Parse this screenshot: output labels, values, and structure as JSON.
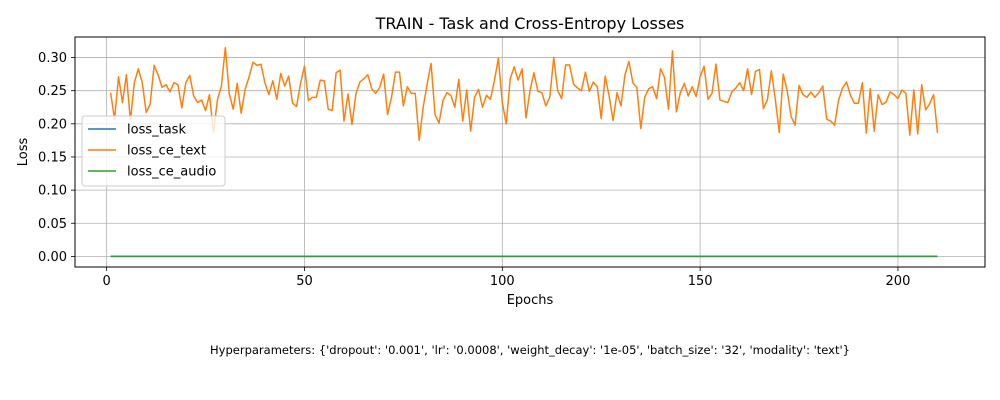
{
  "chart_data": {
    "type": "line",
    "title": "TRAIN - Task and Cross-Entropy Losses",
    "xlabel": "Epochs",
    "ylabel": "Loss",
    "xlim": [
      -8,
      222
    ],
    "ylim": [
      -0.016,
      0.331
    ],
    "xticks": [
      0,
      50,
      100,
      150,
      200
    ],
    "xtick_labels": [
      "0",
      "50",
      "100",
      "150",
      "200"
    ],
    "yticks": [
      0.0,
      0.05,
      0.1,
      0.15,
      0.2,
      0.25,
      0.3
    ],
    "ytick_labels": [
      "0.00",
      "0.05",
      "0.10",
      "0.15",
      "0.20",
      "0.25",
      "0.30"
    ],
    "grid": true,
    "legend_position": "center-left",
    "x": [
      1,
      2,
      3,
      4,
      5,
      6,
      7,
      8,
      9,
      10,
      11,
      12,
      13,
      14,
      15,
      16,
      17,
      18,
      19,
      20,
      21,
      22,
      23,
      24,
      25,
      26,
      27,
      28,
      29,
      30,
      31,
      32,
      33,
      34,
      35,
      36,
      37,
      38,
      39,
      40,
      41,
      42,
      43,
      44,
      45,
      46,
      47,
      48,
      49,
      50,
      51,
      52,
      53,
      54,
      55,
      56,
      57,
      58,
      59,
      60,
      61,
      62,
      63,
      64,
      65,
      66,
      67,
      68,
      69,
      70,
      71,
      72,
      73,
      74,
      75,
      76,
      77,
      78,
      79,
      80,
      81,
      82,
      83,
      84,
      85,
      86,
      87,
      88,
      89,
      90,
      91,
      92,
      93,
      94,
      95,
      96,
      97,
      98,
      99,
      100,
      101,
      102,
      103,
      104,
      105,
      106,
      107,
      108,
      109,
      110,
      111,
      112,
      113,
      114,
      115,
      116,
      117,
      118,
      119,
      120,
      121,
      122,
      123,
      124,
      125,
      126,
      127,
      128,
      129,
      130,
      131,
      132,
      133,
      134,
      135,
      136,
      137,
      138,
      139,
      140,
      141,
      142,
      143,
      144,
      145,
      146,
      147,
      148,
      149,
      150,
      151,
      152,
      153,
      154,
      155,
      156,
      157,
      158,
      159,
      160,
      161,
      162,
      163,
      164,
      165,
      166,
      167,
      168,
      169,
      170,
      171,
      172,
      173,
      174,
      175,
      176,
      177,
      178,
      179,
      180,
      181,
      182,
      183,
      184,
      185,
      186,
      187,
      188,
      189,
      190,
      191,
      192,
      193,
      194,
      195,
      196,
      197,
      198,
      199,
      200,
      201,
      202,
      203,
      204,
      205,
      206,
      207,
      208,
      209,
      210
    ],
    "series": [
      {
        "name": "loss_task",
        "color": "#1f77b4",
        "values": [
          0,
          0,
          0,
          0,
          0,
          0,
          0,
          0,
          0,
          0,
          0,
          0,
          0,
          0,
          0,
          0,
          0,
          0,
          0,
          0,
          0,
          0,
          0,
          0,
          0,
          0,
          0,
          0,
          0,
          0,
          0,
          0,
          0,
          0,
          0,
          0,
          0,
          0,
          0,
          0,
          0,
          0,
          0,
          0,
          0,
          0,
          0,
          0,
          0,
          0,
          0,
          0,
          0,
          0,
          0,
          0,
          0,
          0,
          0,
          0,
          0,
          0,
          0,
          0,
          0,
          0,
          0,
          0,
          0,
          0,
          0,
          0,
          0,
          0,
          0,
          0,
          0,
          0,
          0,
          0,
          0,
          0,
          0,
          0,
          0,
          0,
          0,
          0,
          0,
          0,
          0,
          0,
          0,
          0,
          0,
          0,
          0,
          0,
          0,
          0,
          0,
          0,
          0,
          0,
          0,
          0,
          0,
          0,
          0,
          0,
          0,
          0,
          0,
          0,
          0,
          0,
          0,
          0,
          0,
          0,
          0,
          0,
          0,
          0,
          0,
          0,
          0,
          0,
          0,
          0,
          0,
          0,
          0,
          0,
          0,
          0,
          0,
          0,
          0,
          0,
          0,
          0,
          0,
          0,
          0,
          0,
          0,
          0,
          0,
          0,
          0,
          0,
          0,
          0,
          0,
          0,
          0,
          0,
          0,
          0,
          0,
          0,
          0,
          0,
          0,
          0,
          0,
          0,
          0,
          0,
          0,
          0,
          0,
          0,
          0,
          0,
          0,
          0,
          0,
          0,
          0,
          0,
          0,
          0,
          0,
          0,
          0,
          0,
          0,
          0,
          0,
          0,
          0,
          0,
          0,
          0,
          0,
          0,
          0,
          0,
          0,
          0,
          0,
          0,
          0,
          0,
          0,
          0,
          0,
          0
        ]
      },
      {
        "name": "loss_ce_text",
        "color": "#ff7f0e",
        "values": [
          0.247,
          0.207,
          0.271,
          0.232,
          0.274,
          0.205,
          0.262,
          0.283,
          0.262,
          0.217,
          0.23,
          0.288,
          0.274,
          0.255,
          0.259,
          0.248,
          0.262,
          0.259,
          0.224,
          0.262,
          0.273,
          0.242,
          0.232,
          0.236,
          0.22,
          0.244,
          0.187,
          0.236,
          0.257,
          0.315,
          0.245,
          0.222,
          0.261,
          0.216,
          0.252,
          0.271,
          0.293,
          0.288,
          0.29,
          0.262,
          0.244,
          0.265,
          0.237,
          0.276,
          0.257,
          0.272,
          0.231,
          0.226,
          0.261,
          0.287,
          0.235,
          0.24,
          0.24,
          0.266,
          0.265,
          0.222,
          0.22,
          0.277,
          0.281,
          0.204,
          0.245,
          0.199,
          0.245,
          0.263,
          0.268,
          0.274,
          0.253,
          0.246,
          0.255,
          0.275,
          0.214,
          0.24,
          0.278,
          0.278,
          0.227,
          0.256,
          0.246,
          0.246,
          0.175,
          0.225,
          0.26,
          0.291,
          0.214,
          0.201,
          0.235,
          0.247,
          0.243,
          0.225,
          0.267,
          0.204,
          0.251,
          0.189,
          0.24,
          0.252,
          0.225,
          0.243,
          0.237,
          0.265,
          0.299,
          0.232,
          0.2,
          0.268,
          0.286,
          0.266,
          0.283,
          0.209,
          0.25,
          0.277,
          0.249,
          0.247,
          0.227,
          0.24,
          0.3,
          0.25,
          0.238,
          0.289,
          0.289,
          0.26,
          0.254,
          0.25,
          0.278,
          0.249,
          0.263,
          0.256,
          0.208,
          0.272,
          0.242,
          0.205,
          0.247,
          0.227,
          0.274,
          0.294,
          0.262,
          0.255,
          0.193,
          0.24,
          0.253,
          0.256,
          0.238,
          0.283,
          0.27,
          0.222,
          0.31,
          0.218,
          0.247,
          0.261,
          0.242,
          0.256,
          0.241,
          0.271,
          0.287,
          0.237,
          0.246,
          0.29,
          0.236,
          0.234,
          0.232,
          0.248,
          0.254,
          0.262,
          0.25,
          0.283,
          0.244,
          0.279,
          0.282,
          0.223,
          0.236,
          0.28,
          0.237,
          0.187,
          0.275,
          0.25,
          0.211,
          0.198,
          0.258,
          0.244,
          0.24,
          0.248,
          0.24,
          0.247,
          0.257,
          0.207,
          0.204,
          0.198,
          0.236,
          0.254,
          0.263,
          0.243,
          0.231,
          0.231,
          0.262,
          0.186,
          0.253,
          0.189,
          0.244,
          0.229,
          0.233,
          0.248,
          0.244,
          0.238,
          0.251,
          0.246,
          0.183,
          0.251,
          0.185,
          0.259,
          0.221,
          0.23,
          0.244,
          0.186
        ]
      },
      {
        "name": "loss_ce_audio",
        "color": "#2ca02c",
        "values": [
          0,
          0,
          0,
          0,
          0,
          0,
          0,
          0,
          0,
          0,
          0,
          0,
          0,
          0,
          0,
          0,
          0,
          0,
          0,
          0,
          0,
          0,
          0,
          0,
          0,
          0,
          0,
          0,
          0,
          0,
          0,
          0,
          0,
          0,
          0,
          0,
          0,
          0,
          0,
          0,
          0,
          0,
          0,
          0,
          0,
          0,
          0,
          0,
          0,
          0,
          0,
          0,
          0,
          0,
          0,
          0,
          0,
          0,
          0,
          0,
          0,
          0,
          0,
          0,
          0,
          0,
          0,
          0,
          0,
          0,
          0,
          0,
          0,
          0,
          0,
          0,
          0,
          0,
          0,
          0,
          0,
          0,
          0,
          0,
          0,
          0,
          0,
          0,
          0,
          0,
          0,
          0,
          0,
          0,
          0,
          0,
          0,
          0,
          0,
          0,
          0,
          0,
          0,
          0,
          0,
          0,
          0,
          0,
          0,
          0,
          0,
          0,
          0,
          0,
          0,
          0,
          0,
          0,
          0,
          0,
          0,
          0,
          0,
          0,
          0,
          0,
          0,
          0,
          0,
          0,
          0,
          0,
          0,
          0,
          0,
          0,
          0,
          0,
          0,
          0,
          0,
          0,
          0,
          0,
          0,
          0,
          0,
          0,
          0,
          0,
          0,
          0,
          0,
          0,
          0,
          0,
          0,
          0,
          0,
          0,
          0,
          0,
          0,
          0,
          0,
          0,
          0,
          0,
          0,
          0,
          0,
          0,
          0,
          0,
          0,
          0,
          0,
          0,
          0,
          0,
          0,
          0,
          0,
          0,
          0,
          0,
          0,
          0,
          0,
          0,
          0,
          0,
          0,
          0,
          0,
          0,
          0,
          0,
          0,
          0,
          0,
          0,
          0,
          0,
          0,
          0,
          0,
          0,
          0,
          0
        ]
      }
    ],
    "footnote": "Hyperparameters: {'dropout': '0.001', 'lr': '0.0008', 'weight_decay': '1e-05', 'batch_size': '32', 'modality': 'text'}"
  }
}
